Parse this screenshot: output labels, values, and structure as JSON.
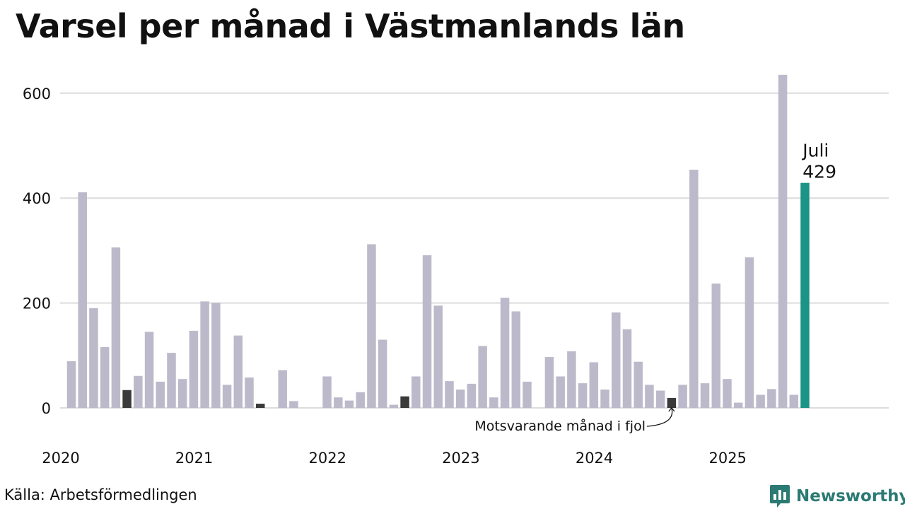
{
  "title": "Varsel per månad i Västmanlands län",
  "source": "Källa: Arbetsförmedlingen",
  "brand": "Newsworthy",
  "colors": {
    "bar": "#bcbaca",
    "highlight": "#3a3a3a",
    "current": "#1b9485",
    "grid": "#dcdcdc",
    "text": "#111111",
    "brand": "#2b7a73"
  },
  "chart_data": {
    "type": "bar",
    "start": "2020-01",
    "ylim": [
      0,
      640
    ],
    "yticks": [
      0,
      200,
      400,
      600
    ],
    "year_labels": [
      "2020",
      "2021",
      "2022",
      "2023",
      "2024",
      "2025"
    ],
    "values": [
      89,
      411,
      190,
      116,
      306,
      34,
      61,
      145,
      50,
      105,
      55,
      147,
      203,
      200,
      44,
      138,
      58,
      8,
      0,
      72,
      13,
      0,
      0,
      60,
      20,
      14,
      30,
      312,
      130,
      6,
      22,
      60,
      291,
      195,
      51,
      35,
      46,
      118,
      20,
      210,
      184,
      50,
      0,
      97,
      60,
      108,
      47,
      87,
      35,
      182,
      150,
      88,
      44,
      33,
      19,
      44,
      454,
      47,
      237,
      55,
      10,
      287,
      25,
      36,
      635,
      25,
      429
    ],
    "highlight_indices": [
      5,
      17,
      30,
      54
    ],
    "current_index": 66,
    "current_label": "Juli",
    "current_value": "429",
    "annotation": "Motsvarande månad i fjol"
  }
}
